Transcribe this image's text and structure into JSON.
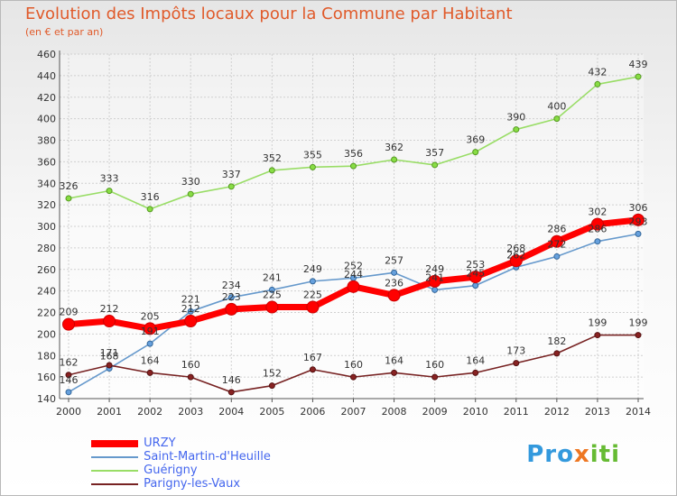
{
  "title": "Evolution des Impôts locaux pour la Commune par Habitant",
  "subtitle": "(en € et par an)",
  "logo": "Proxiti",
  "chart_data": {
    "type": "line",
    "x": [
      "2000",
      "2001",
      "2002",
      "2003",
      "2004",
      "2005",
      "2006",
      "2007",
      "2008",
      "2009",
      "2010",
      "2011",
      "2012",
      "2013",
      "2014"
    ],
    "ylim": [
      140,
      460
    ],
    "yticks": [
      140,
      160,
      180,
      200,
      220,
      240,
      260,
      280,
      300,
      320,
      340,
      360,
      380,
      400,
      420,
      440,
      460
    ],
    "grid": true,
    "legend_position": "bottom-left",
    "series": [
      {
        "name": "URZY",
        "color": "#ff0000",
        "values": [
          209,
          212,
          205,
          212,
          223,
          225,
          225,
          244,
          236,
          249,
          253,
          268,
          286,
          302,
          306
        ]
      },
      {
        "name": "Saint-Martin-d'Heuille",
        "color": "#6699cc",
        "values": [
          146,
          168,
          191,
          221,
          234,
          241,
          249,
          252,
          257,
          241,
          245,
          262,
          272,
          286,
          293
        ]
      },
      {
        "name": "Guérigny",
        "color": "#99dd66",
        "values": [
          326,
          333,
          316,
          330,
          337,
          352,
          355,
          356,
          362,
          357,
          369,
          390,
          400,
          432,
          439
        ]
      },
      {
        "name": "Parigny-les-Vaux",
        "color": "#772222",
        "values": [
          162,
          171,
          164,
          160,
          146,
          152,
          167,
          160,
          164,
          160,
          164,
          173,
          182,
          199,
          199
        ]
      }
    ],
    "data_labels": {
      "URZY": [
        "209",
        "212",
        "205",
        "212",
        "223",
        "225",
        "225",
        "244",
        "236",
        "249",
        "253",
        "268",
        "286",
        "302",
        "306"
      ],
      "Saint-Martin-d'Heuille": [
        "146",
        "168",
        "191",
        "221",
        "234",
        "241",
        "249",
        "252",
        "257",
        "241",
        "245",
        "262",
        "272",
        "286",
        "293"
      ],
      "Guérigny": [
        "326",
        "333",
        "316",
        "330",
        "337",
        "352",
        "355",
        "356",
        "362",
        "357",
        "369",
        "390",
        "400",
        "432",
        "439"
      ],
      "Parigny-les-Vaux": [
        "162",
        "171",
        "164",
        "160",
        "146",
        "152",
        "167",
        "160",
        "164",
        "160",
        "164",
        "173",
        "182",
        "199",
        "199"
      ]
    }
  }
}
